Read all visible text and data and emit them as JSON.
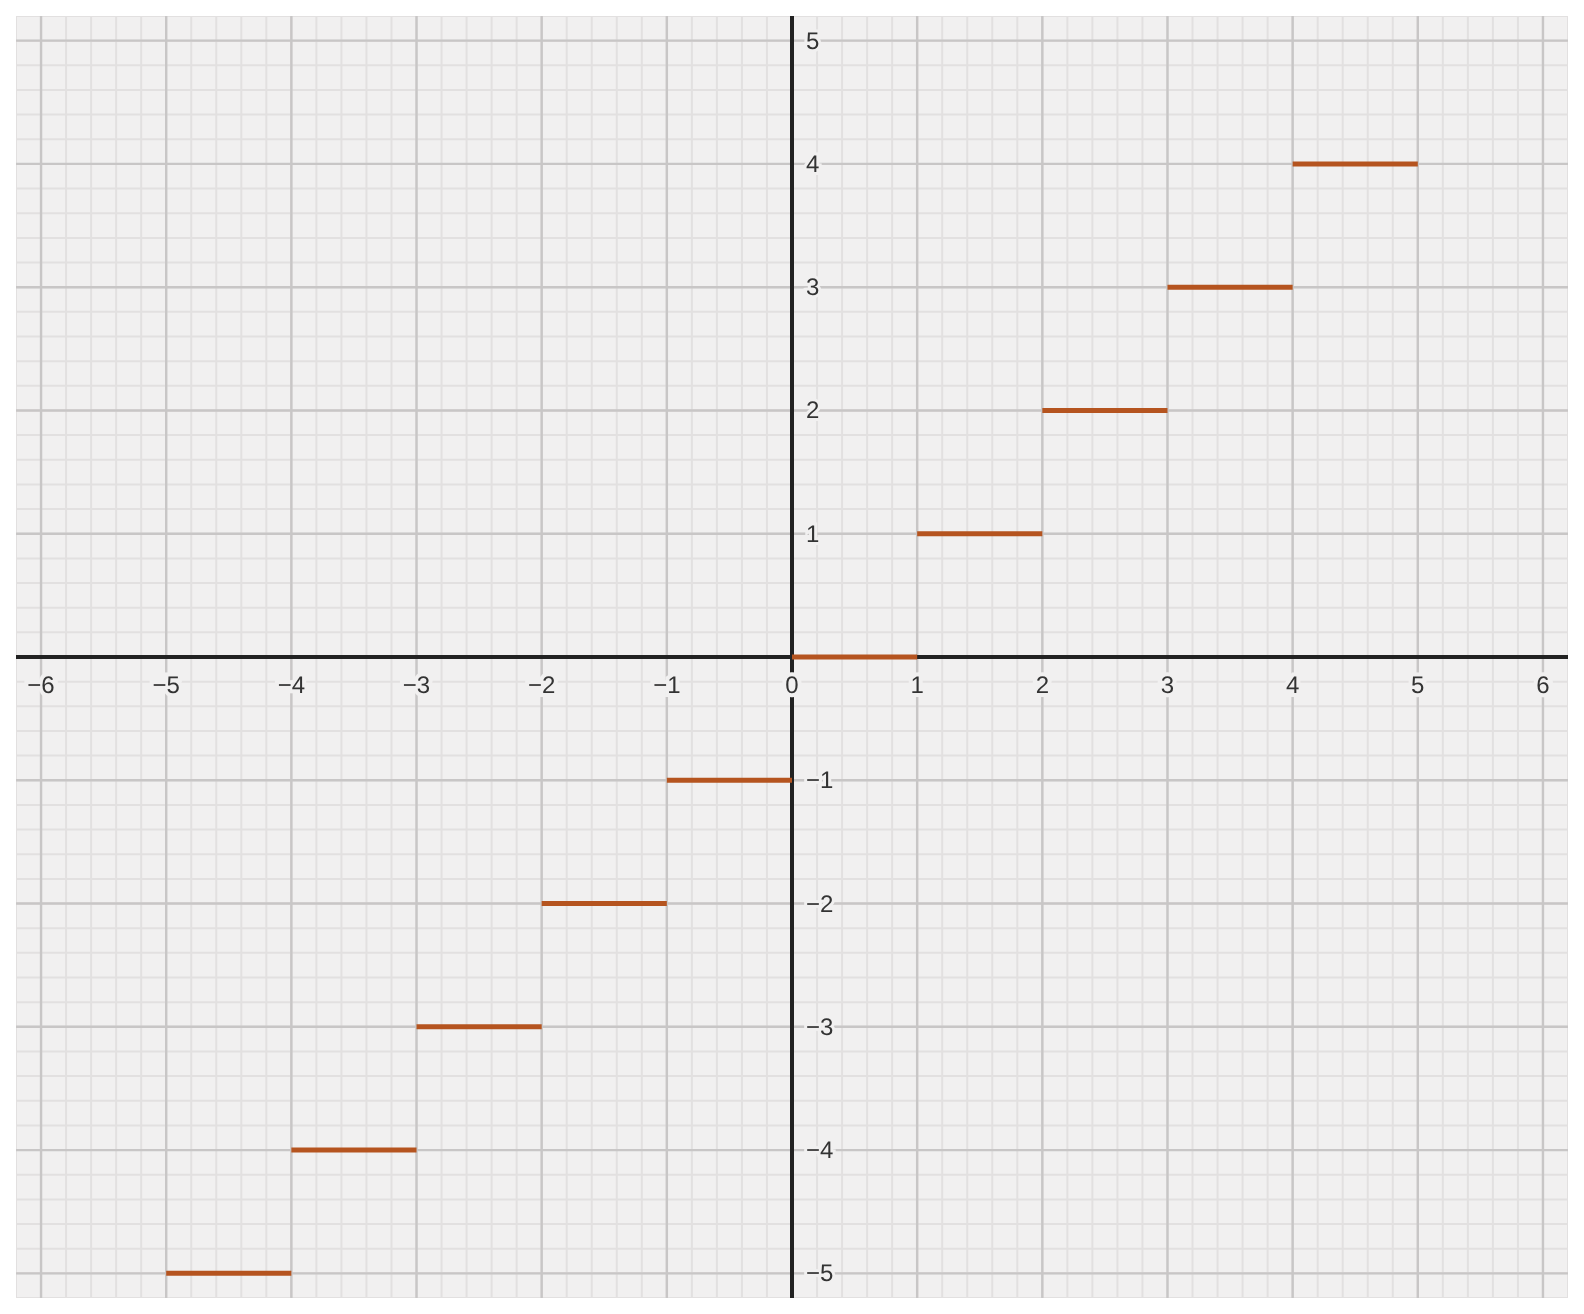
{
  "chart_data": {
    "type": "line",
    "xlim": [
      -6.2,
      6.2
    ],
    "ylim": [
      -5.2,
      5.2
    ],
    "xticks": [
      -6,
      -5,
      -4,
      -3,
      -2,
      -1,
      0,
      1,
      2,
      3,
      4,
      5,
      6
    ],
    "yticks": [
      -5,
      -4,
      -3,
      -2,
      -1,
      1,
      2,
      3,
      4,
      5
    ],
    "grid": true,
    "marker": "none",
    "line_style": "solid",
    "series": [
      {
        "color": "#b5541f",
        "x": [
          -5,
          -4
        ],
        "values": [
          -5,
          -5
        ]
      },
      {
        "color": "#b5541f",
        "x": [
          -4,
          -3
        ],
        "values": [
          -4,
          -4
        ]
      },
      {
        "color": "#b5541f",
        "x": [
          -3,
          -2
        ],
        "values": [
          -3,
          -3
        ]
      },
      {
        "color": "#b5541f",
        "x": [
          -2,
          -1
        ],
        "values": [
          -2,
          -2
        ]
      },
      {
        "color": "#b5541f",
        "x": [
          -1,
          0
        ],
        "values": [
          -1,
          -1
        ]
      },
      {
        "color": "#b5541f",
        "x": [
          0,
          1
        ],
        "values": [
          0,
          0
        ]
      },
      {
        "color": "#b5541f",
        "x": [
          1,
          2
        ],
        "values": [
          1,
          1
        ]
      },
      {
        "color": "#b5541f",
        "x": [
          2,
          3
        ],
        "values": [
          2,
          2
        ]
      },
      {
        "color": "#b5541f",
        "x": [
          3,
          4
        ],
        "values": [
          3,
          3
        ]
      },
      {
        "color": "#b5541f",
        "x": [
          4,
          5
        ],
        "values": [
          4,
          4
        ]
      }
    ]
  }
}
